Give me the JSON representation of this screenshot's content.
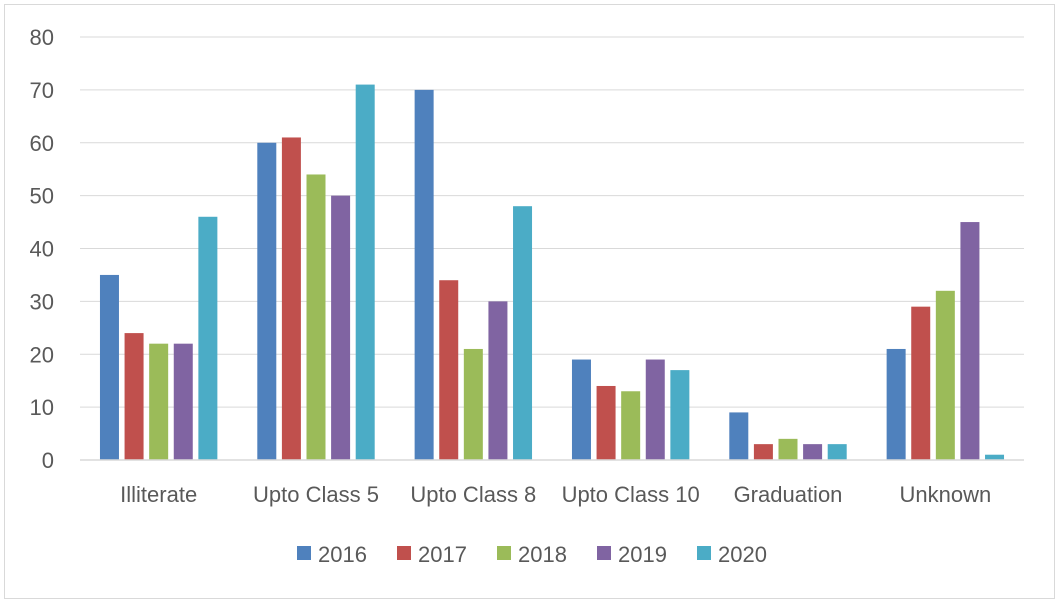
{
  "chart_data": {
    "type": "bar",
    "categories": [
      "Illiterate",
      "Upto Class 5",
      "Upto Class 8",
      "Upto Class 10",
      "Graduation",
      "Unknown"
    ],
    "series": [
      {
        "name": "2016",
        "color": "#4f81bd",
        "values": [
          35,
          60,
          70,
          19,
          9,
          21
        ]
      },
      {
        "name": "2017",
        "color": "#c0504d",
        "values": [
          24,
          61,
          34,
          14,
          3,
          29
        ]
      },
      {
        "name": "2018",
        "color": "#9bbb59",
        "values": [
          22,
          54,
          21,
          13,
          4,
          32
        ]
      },
      {
        "name": "2019",
        "color": "#8064a2",
        "values": [
          22,
          50,
          30,
          19,
          3,
          45
        ]
      },
      {
        "name": "2020",
        "color": "#4bacc6",
        "values": [
          46,
          71,
          48,
          17,
          3,
          1
        ]
      }
    ],
    "ylim": [
      0,
      80
    ],
    "yticks": [
      0,
      10,
      20,
      30,
      40,
      50,
      60,
      70,
      80
    ],
    "grid": true,
    "legend_position": "bottom",
    "title": "",
    "xlabel": "",
    "ylabel": ""
  }
}
